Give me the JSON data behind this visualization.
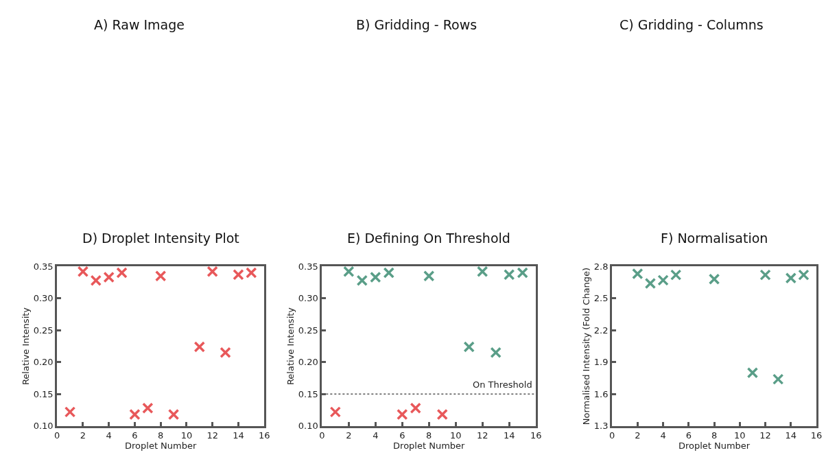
{
  "chart_data": [
    {
      "type": "other",
      "title": "A) Raw Image"
    },
    {
      "type": "other",
      "title": "B) Gridding - Rows"
    },
    {
      "type": "other",
      "title": "C) Gridding - Columns"
    },
    {
      "type": "scatter",
      "title": "D) Droplet Intensity Plot",
      "xlabel": "Droplet Number",
      "ylabel": "Relative Intensity",
      "marker": "cross",
      "xlim": [
        0,
        16
      ],
      "xticks": [
        0,
        2,
        4,
        6,
        8,
        10,
        12,
        14,
        16
      ],
      "ylim": [
        0.1,
        0.35
      ],
      "yticks": [
        {
          "value": 0.1,
          "label": "0.10"
        },
        0.15,
        {
          "value": 0.2,
          "label": "0.20"
        },
        0.25,
        {
          "value": 0.3,
          "label": "0.30"
        },
        0.35
      ],
      "series": [
        {
          "color": "#e8585a",
          "x": [
            1,
            2,
            3,
            4,
            5,
            6,
            7,
            8,
            9,
            11,
            12,
            13,
            14,
            15
          ],
          "values": [
            0.122,
            0.342,
            0.328,
            0.333,
            0.34,
            0.118,
            0.128,
            0.335,
            0.118,
            0.224,
            0.342,
            0.215,
            0.337,
            0.34
          ]
        }
      ]
    },
    {
      "type": "scatter",
      "title": "E) Defining On Threshold",
      "xlabel": "Droplet Number",
      "ylabel": "Relative Intensity",
      "marker": "cross",
      "xlim": [
        0,
        16
      ],
      "xticks": [
        0,
        2,
        4,
        6,
        8,
        10,
        12,
        14,
        16
      ],
      "ylim": [
        0.1,
        0.35
      ],
      "yticks": [
        {
          "value": 0.1,
          "label": "0.10"
        },
        0.15,
        {
          "value": 0.2,
          "label": "0.20"
        },
        0.25,
        {
          "value": 0.3,
          "label": "0.30"
        },
        0.35
      ],
      "series": [
        {
          "color": "#e8585a",
          "x": [
            1,
            6,
            7,
            9
          ],
          "values": [
            0.122,
            0.118,
            0.128,
            0.118
          ]
        },
        {
          "color": "#5a9e88",
          "x": [
            2,
            3,
            4,
            5,
            8,
            11,
            12,
            13,
            14,
            15
          ],
          "values": [
            0.342,
            0.328,
            0.333,
            0.34,
            0.335,
            0.224,
            0.342,
            0.215,
            0.337,
            0.34
          ]
        }
      ],
      "ref_lines": [
        {
          "axis": "y",
          "value": 0.15,
          "label": "On Threshold",
          "color": "#555555",
          "line_style": "dotted"
        }
      ]
    },
    {
      "type": "scatter",
      "title": "F) Normalisation",
      "xlabel": "Droplet Number",
      "ylabel": "Normalised Intensity (Fold Change)",
      "marker": "cross",
      "xlim": [
        0,
        16
      ],
      "xticks": [
        0,
        2,
        4,
        6,
        8,
        10,
        12,
        14,
        16
      ],
      "ylim": [
        1.3,
        2.8
      ],
      "yticks": [
        1.3,
        1.6,
        1.9,
        2.2,
        2.5,
        2.8
      ],
      "series": [
        {
          "color": "#5a9e88",
          "x": [
            2,
            3,
            4,
            5,
            8,
            11,
            12,
            13,
            14,
            15
          ],
          "values": [
            2.73,
            2.64,
            2.67,
            2.72,
            2.68,
            1.8,
            2.72,
            1.74,
            2.69,
            2.72
          ]
        }
      ]
    }
  ]
}
